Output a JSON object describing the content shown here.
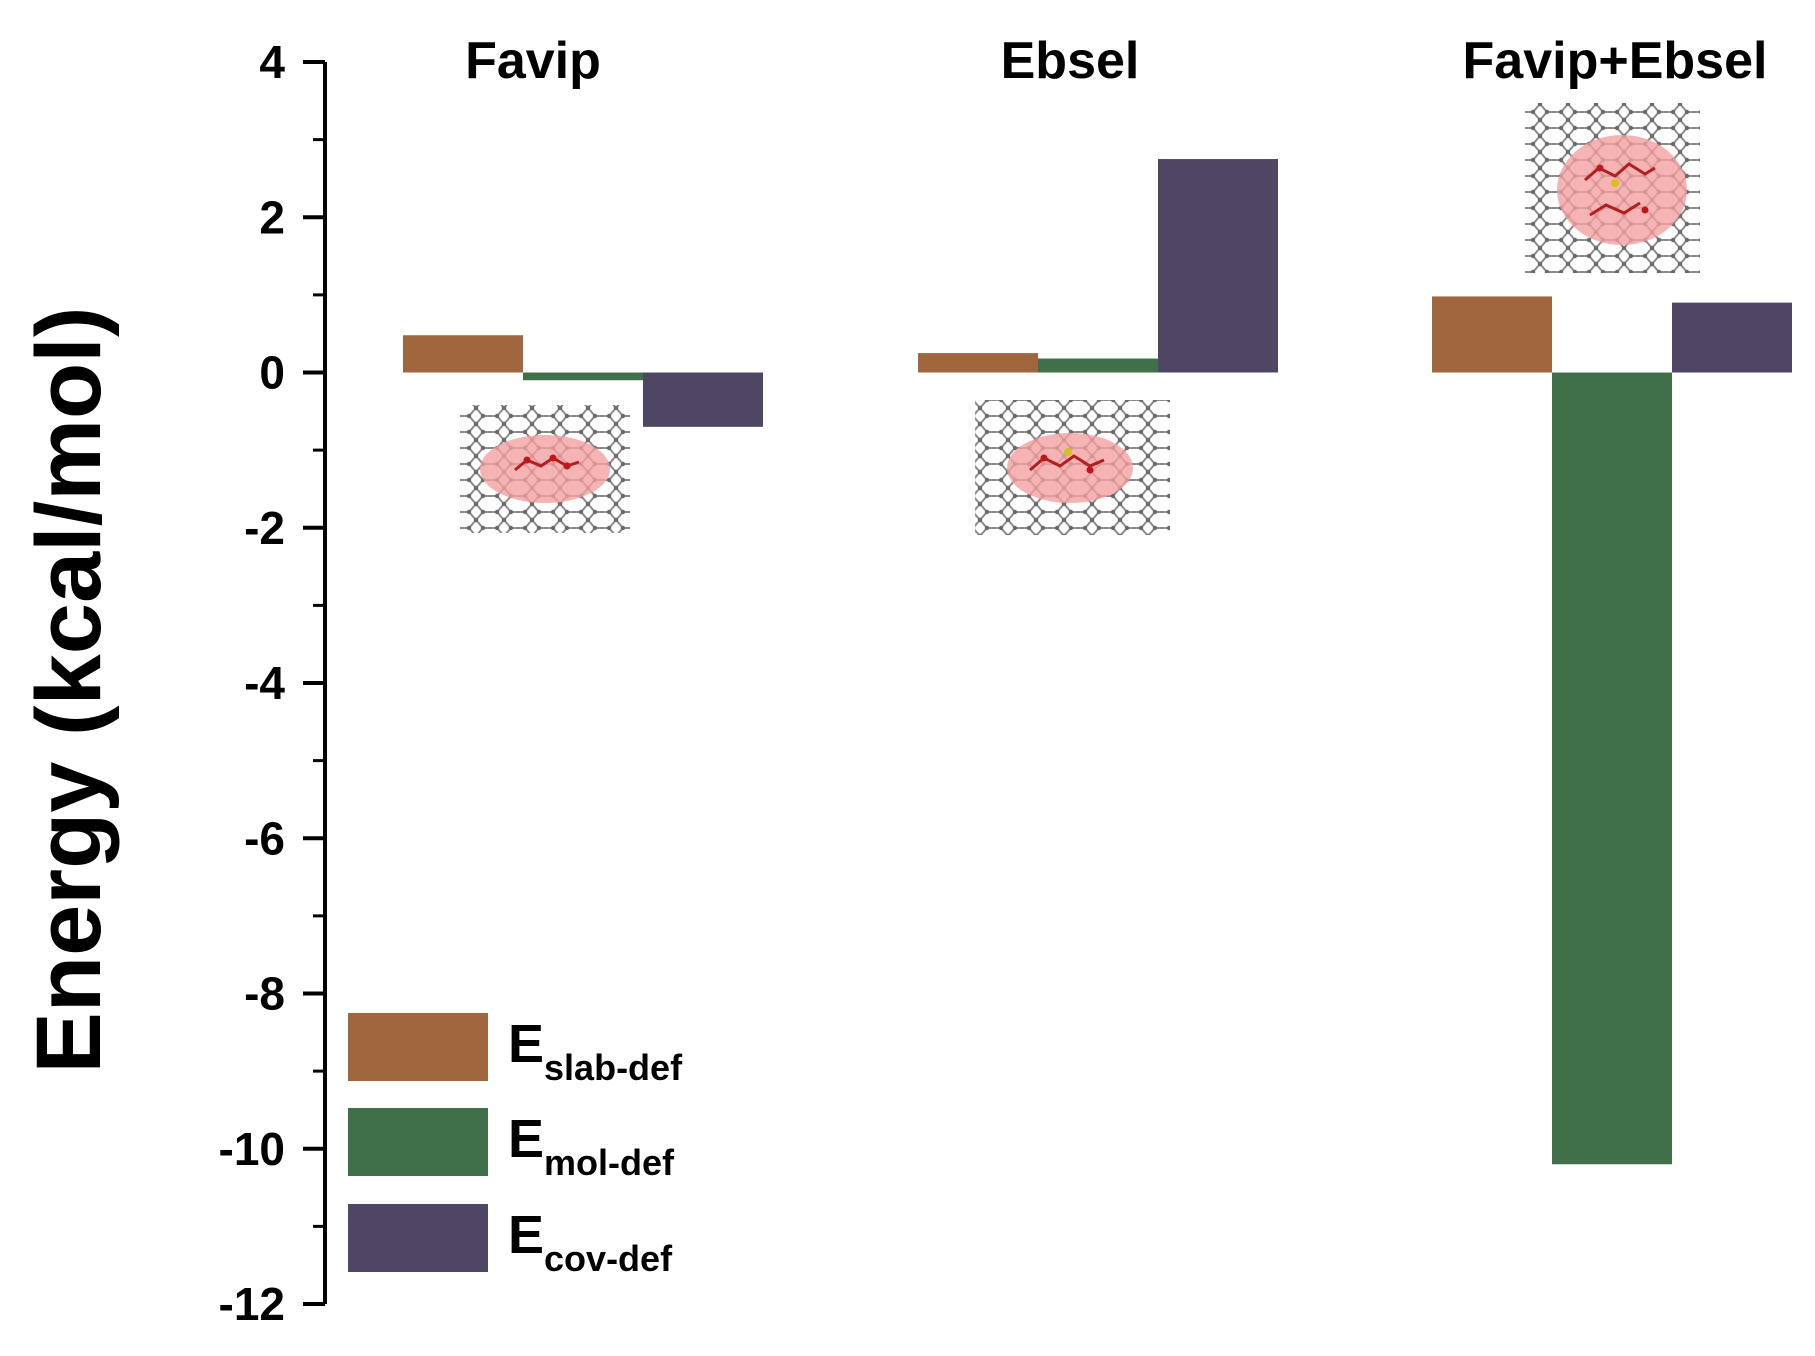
{
  "chart_data": {
    "type": "bar",
    "categories": [
      "Favip",
      "Ebsel",
      "Favip+Ebsel"
    ],
    "series": [
      {
        "name": "E",
        "subscript": "slab-def",
        "color": "#a0673f",
        "values": [
          0.48,
          0.25,
          0.98
        ]
      },
      {
        "name": "E",
        "subscript": "mol-def",
        "color": "#40704a",
        "values": [
          -0.1,
          0.18,
          -10.2
        ]
      },
      {
        "name": "E",
        "subscript": "cov-def",
        "color": "#4f4663",
        "values": [
          -0.7,
          2.75,
          0.9
        ]
      }
    ],
    "ylabel": "Energy (kcal/mol)",
    "xlabel": "",
    "ylim": [
      -12,
      4
    ],
    "yticks": [
      "4",
      "2",
      "0",
      "-2",
      "-4",
      "-6",
      "-8",
      "-10",
      "-12"
    ],
    "ytick_values": [
      4,
      2,
      0,
      -2,
      -4,
      -6,
      -8,
      -10,
      -12
    ],
    "grid": false,
    "legend_position": "bottom-left",
    "insets": [
      "graphene-favip-icon",
      "graphene-ebsel-icon",
      "graphene-favip-ebsel-icon"
    ]
  }
}
